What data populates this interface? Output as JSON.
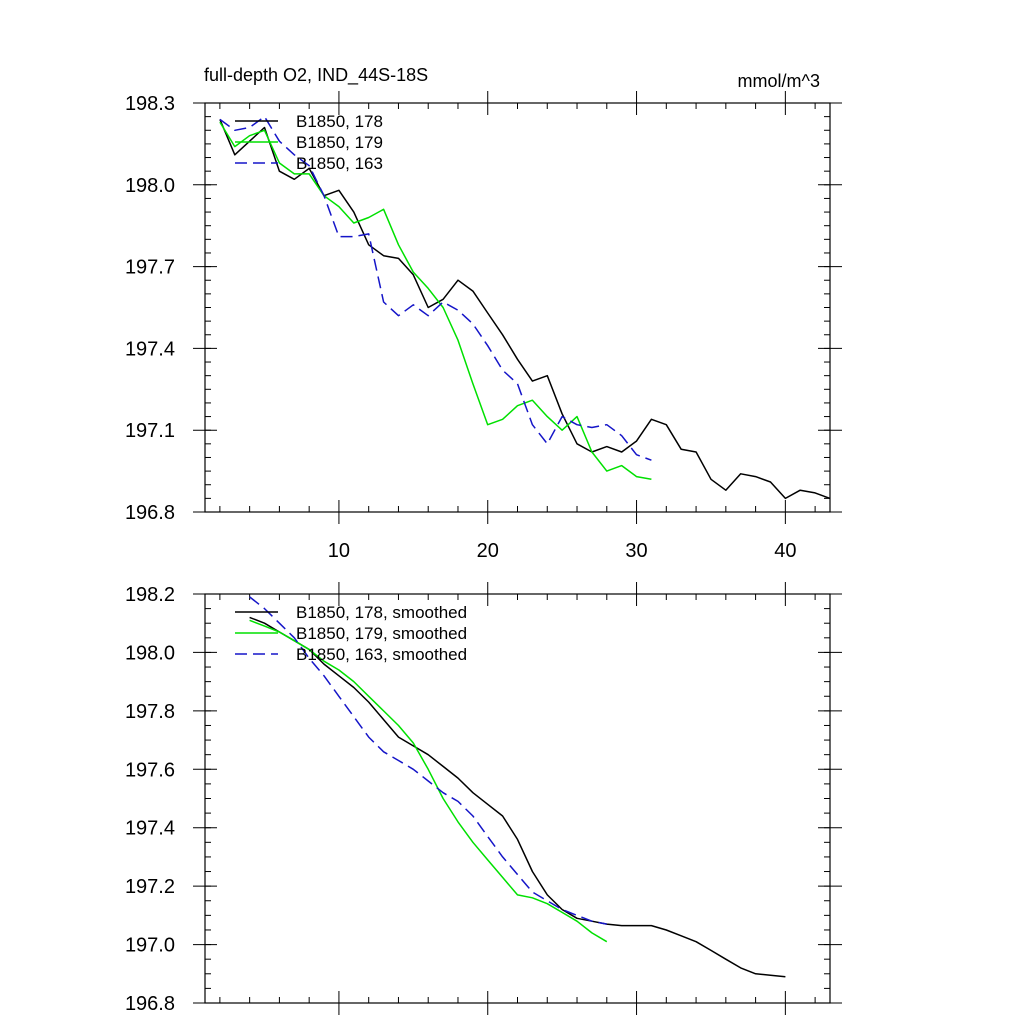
{
  "chart_data": [
    {
      "type": "line",
      "title": "full-depth O2, IND_44S-18S",
      "units": "mmol/m^3",
      "xlim": [
        1,
        43
      ],
      "ylim": [
        196.8,
        198.3
      ],
      "xticks": [
        10,
        20,
        30,
        40
      ],
      "yticks": [
        196.8,
        197.1,
        197.4,
        197.7,
        198.0,
        198.3
      ],
      "ytick_labels": [
        "196.8",
        "197.1",
        "197.4",
        "197.7",
        "198.0",
        "198.3"
      ],
      "legend_position": "top-left",
      "series": [
        {
          "name": "B1850, 178",
          "color": "#000000",
          "dash": "solid",
          "x": [
            2,
            3,
            4,
            5,
            6,
            7,
            8,
            9,
            10,
            11,
            12,
            13,
            14,
            15,
            16,
            17,
            18,
            19,
            20,
            21,
            22,
            23,
            24,
            25,
            26,
            27,
            28,
            29,
            30,
            31,
            32,
            33,
            34,
            35,
            36,
            37,
            38,
            39,
            40,
            41,
            42,
            43
          ],
          "y": [
            198.24,
            198.11,
            198.16,
            198.21,
            198.05,
            198.02,
            198.06,
            197.96,
            197.98,
            197.9,
            197.78,
            197.74,
            197.73,
            197.67,
            197.55,
            197.58,
            197.65,
            197.61,
            197.53,
            197.45,
            197.36,
            197.28,
            197.3,
            197.16,
            197.05,
            197.02,
            197.04,
            197.02,
            197.06,
            197.14,
            197.12,
            197.03,
            197.02,
            196.92,
            196.88,
            196.94,
            196.93,
            196.91,
            196.85,
            196.88,
            196.87,
            196.85
          ]
        },
        {
          "name": "B1850, 179",
          "color": "#00e000",
          "dash": "solid",
          "x": [
            2,
            3,
            4,
            5,
            6,
            7,
            8,
            9,
            10,
            11,
            12,
            13,
            14,
            15,
            16,
            17,
            18,
            19,
            20,
            21,
            22,
            23,
            24,
            25,
            26,
            27,
            28,
            29,
            30,
            31
          ],
          "y": [
            198.23,
            198.14,
            198.18,
            198.2,
            198.08,
            198.04,
            198.04,
            197.96,
            197.92,
            197.86,
            197.88,
            197.91,
            197.78,
            197.68,
            197.62,
            197.55,
            197.43,
            197.27,
            197.12,
            197.14,
            197.19,
            197.21,
            197.15,
            197.1,
            197.15,
            197.02,
            196.95,
            196.97,
            196.93,
            196.92
          ]
        },
        {
          "name": "B1850, 163",
          "color": "#1515c8",
          "dash": "dashed",
          "x": [
            2,
            3,
            4,
            5,
            6,
            7,
            8,
            9,
            10,
            11,
            12,
            13,
            14,
            15,
            16,
            17,
            18,
            19,
            20,
            21,
            22,
            23,
            24,
            25,
            26,
            27,
            28,
            29,
            30,
            31
          ],
          "y": [
            198.24,
            198.2,
            198.21,
            198.25,
            198.16,
            198.11,
            198.07,
            197.96,
            197.81,
            197.81,
            197.82,
            197.57,
            197.52,
            197.56,
            197.52,
            197.57,
            197.54,
            197.49,
            197.41,
            197.32,
            197.27,
            197.12,
            197.05,
            197.15,
            197.12,
            197.11,
            197.12,
            197.08,
            197.01,
            196.99
          ]
        }
      ]
    },
    {
      "type": "line",
      "title": "",
      "xlim": [
        1,
        43
      ],
      "ylim": [
        196.8,
        198.2
      ],
      "xticks": [
        10,
        20,
        30,
        40
      ],
      "yticks": [
        196.8,
        197.0,
        197.2,
        197.4,
        197.6,
        197.8,
        198.0,
        198.2
      ],
      "ytick_labels": [
        "196.8",
        "197.0",
        "197.2",
        "197.4",
        "197.6",
        "197.8",
        "198.0",
        "198.2"
      ],
      "legend_position": "top-left",
      "series": [
        {
          "name": "B1850, 178, smoothed",
          "color": "#000000",
          "dash": "solid",
          "x": [
            4,
            5,
            6,
            7,
            8,
            9,
            10,
            11,
            12,
            13,
            14,
            15,
            16,
            17,
            18,
            19,
            20,
            21,
            22,
            23,
            24,
            25,
            26,
            27,
            28,
            29,
            30,
            31,
            32,
            33,
            34,
            35,
            36,
            37,
            38,
            39,
            40
          ],
          "y": [
            198.12,
            198.1,
            198.07,
            198.04,
            198.01,
            197.96,
            197.92,
            197.88,
            197.83,
            197.77,
            197.71,
            197.68,
            197.65,
            197.61,
            197.57,
            197.52,
            197.48,
            197.44,
            197.36,
            197.25,
            197.17,
            197.12,
            197.09,
            197.08,
            197.07,
            197.065,
            197.065,
            197.065,
            197.05,
            197.03,
            197.01,
            196.98,
            196.95,
            196.92,
            196.9,
            196.895,
            196.89
          ]
        },
        {
          "name": "B1850, 179, smoothed",
          "color": "#00e000",
          "dash": "solid",
          "x": [
            4,
            5,
            6,
            7,
            8,
            9,
            10,
            11,
            12,
            13,
            14,
            15,
            16,
            17,
            18,
            19,
            20,
            21,
            22,
            23,
            24,
            25,
            26,
            27,
            28
          ],
          "y": [
            198.11,
            198.09,
            198.07,
            198.04,
            198.01,
            197.97,
            197.94,
            197.9,
            197.85,
            197.8,
            197.75,
            197.69,
            197.6,
            197.5,
            197.42,
            197.35,
            197.29,
            197.23,
            197.17,
            197.16,
            197.14,
            197.11,
            197.08,
            197.04,
            197.01
          ]
        },
        {
          "name": "B1850, 163, smoothed",
          "color": "#1515c8",
          "dash": "dashed",
          "x": [
            4,
            5,
            6,
            7,
            8,
            9,
            10,
            11,
            12,
            13,
            14,
            15,
            16,
            17,
            18,
            19,
            20,
            21,
            22,
            23,
            24,
            25,
            26,
            27,
            28
          ],
          "y": [
            198.19,
            198.15,
            198.1,
            198.05,
            197.98,
            197.92,
            197.85,
            197.78,
            197.71,
            197.66,
            197.63,
            197.6,
            197.56,
            197.52,
            197.49,
            197.44,
            197.37,
            197.3,
            197.24,
            197.18,
            197.15,
            197.12,
            197.1,
            197.08,
            197.07
          ]
        }
      ]
    }
  ]
}
